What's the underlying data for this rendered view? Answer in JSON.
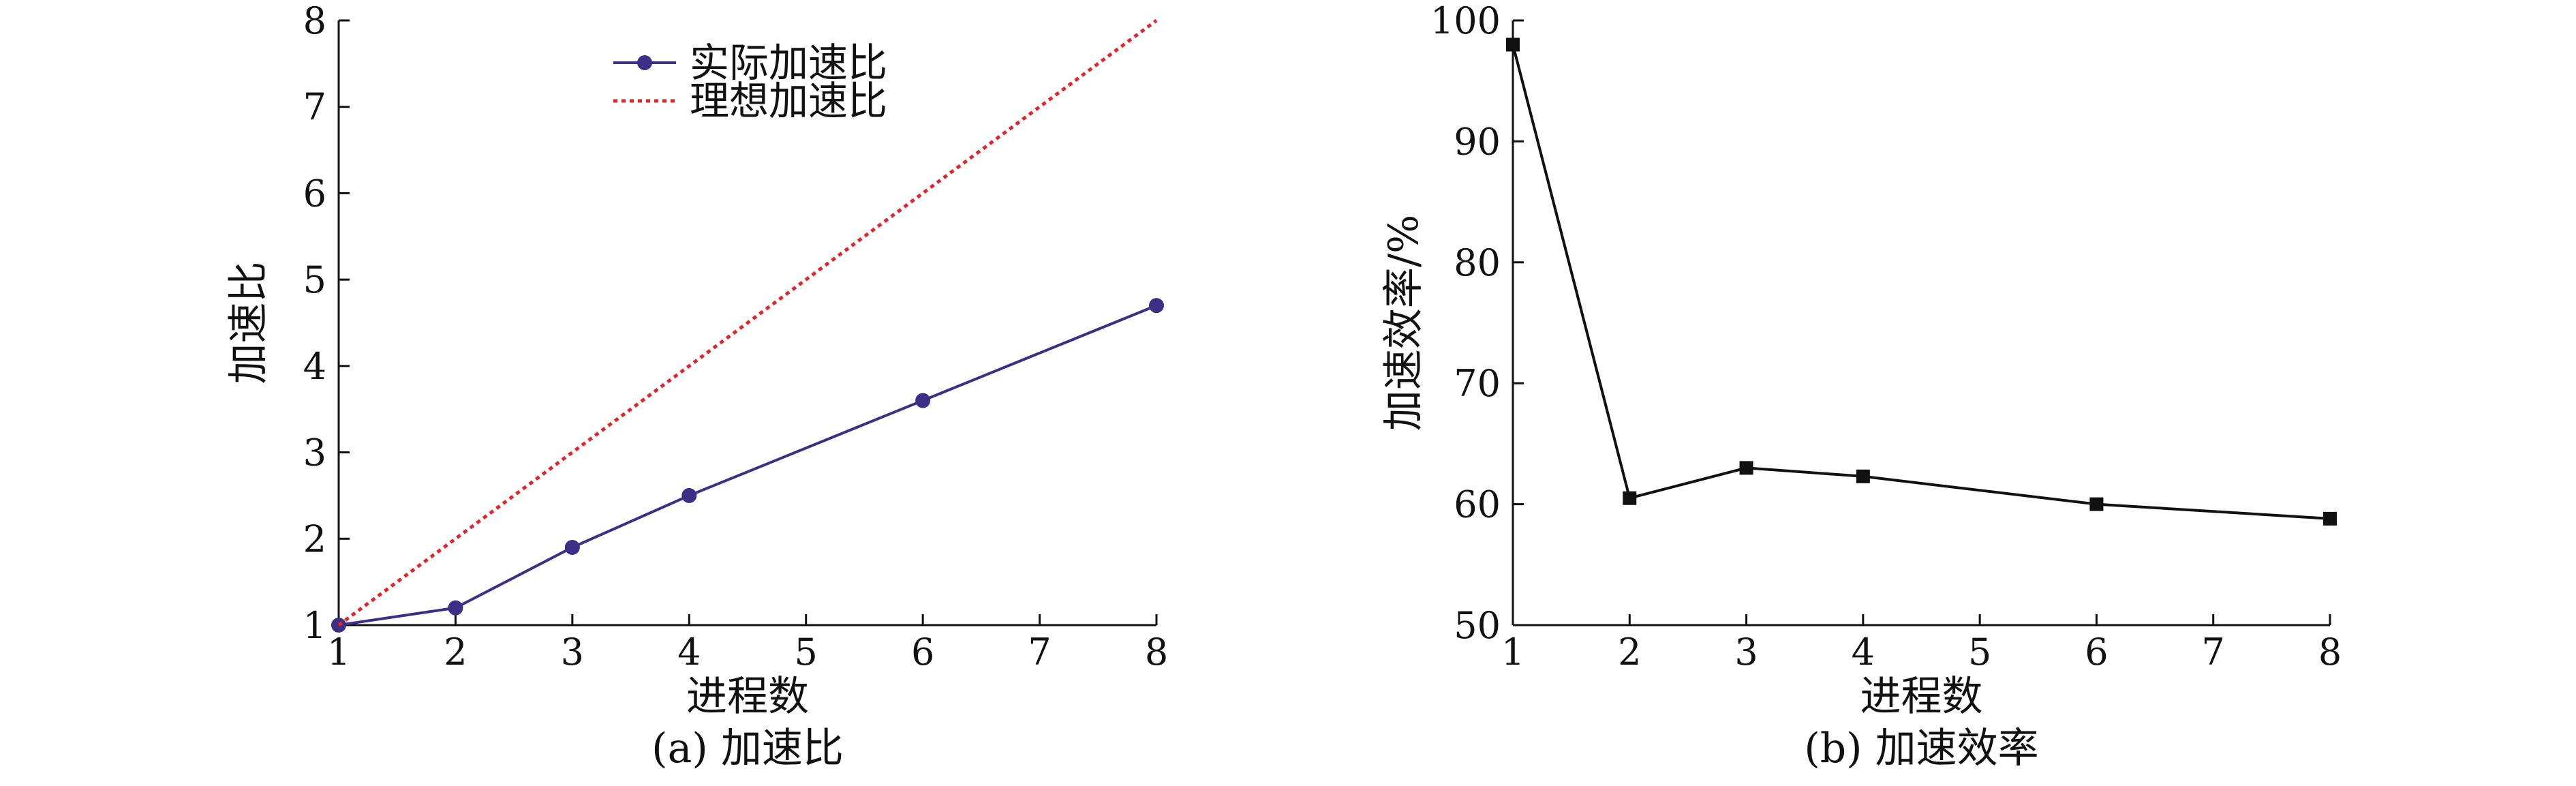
{
  "chart_data": [
    {
      "type": "line",
      "caption": "(a) 加速比",
      "xlabel": "进程数",
      "ylabel": "加速比",
      "x_ticks": [
        "1",
        "2",
        "3",
        "4",
        "5",
        "6",
        "7",
        "8"
      ],
      "y_ticks": [
        "1",
        "2",
        "3",
        "4",
        "5",
        "6",
        "7",
        "8"
      ],
      "xlim": [
        1,
        8
      ],
      "ylim": [
        1,
        8
      ],
      "legend_position": "top-center",
      "series": [
        {
          "name": "实际加速比",
          "color": "#3b2f86",
          "marker": "circle",
          "x": [
            1,
            2,
            3,
            4,
            6,
            8
          ],
          "y": [
            1.0,
            1.2,
            1.9,
            2.5,
            3.6,
            4.7
          ]
        },
        {
          "name": "理想加速比",
          "color": "#e0252b",
          "dashed": true,
          "x": [
            1,
            2,
            3,
            4,
            5,
            6,
            7,
            8
          ],
          "y": [
            1,
            2,
            3,
            4,
            5,
            6,
            7,
            8
          ]
        }
      ]
    },
    {
      "type": "line",
      "caption": "(b) 加速效率",
      "xlabel": "进程数",
      "ylabel": "加速效率/%",
      "x_ticks": [
        "1",
        "2",
        "3",
        "4",
        "5",
        "6",
        "7",
        "8"
      ],
      "y_ticks": [
        "50",
        "60",
        "70",
        "80",
        "90",
        "100"
      ],
      "xlim": [
        1,
        8
      ],
      "ylim": [
        50,
        100
      ],
      "series": [
        {
          "color": "#111111",
          "marker": "square",
          "x": [
            1,
            2,
            3,
            4,
            6,
            8
          ],
          "y": [
            98,
            60.5,
            63,
            62.3,
            60,
            58.8
          ]
        }
      ]
    }
  ]
}
